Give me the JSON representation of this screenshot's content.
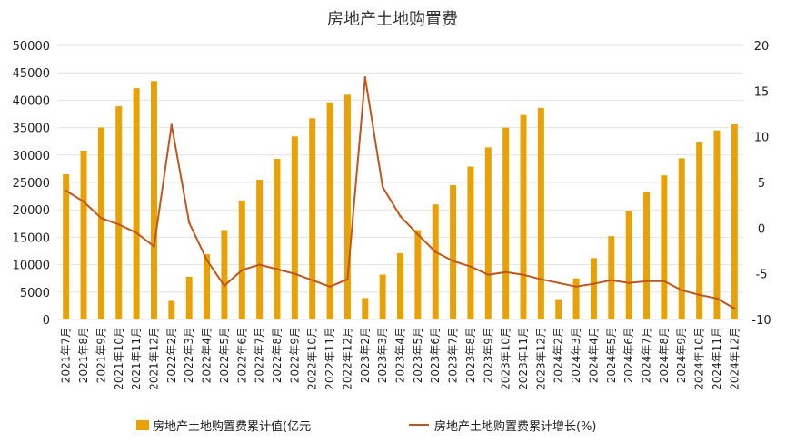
{
  "chart_data": {
    "type": "bar+line",
    "title": "房地产土地购置费",
    "categories": [
      "2021年7月",
      "2021年8月",
      "2021年9月",
      "2021年10月",
      "2021年11月",
      "2021年12月",
      "2022年2月",
      "2022年3月",
      "2022年4月",
      "2022年5月",
      "2022年6月",
      "2022年7月",
      "2022年8月",
      "2022年9月",
      "2022年10月",
      "2022年11月",
      "2022年12月",
      "2023年2月",
      "2023年3月",
      "2023年4月",
      "2023年5月",
      "2023年6月",
      "2023年7月",
      "2023年8月",
      "2023年9月",
      "2023年10月",
      "2023年11月",
      "2023年12月",
      "2024年2月",
      "2024年3月",
      "2024年4月",
      "2024年5月",
      "2024年6月",
      "2024年7月",
      "2024年8月",
      "2024年9月",
      "2024年10月",
      "2024年11月",
      "2024年12月"
    ],
    "series": [
      {
        "name": "房地产土地购置费累计值(亿元",
        "type": "bar",
        "axis": "left",
        "color": "#E8A208",
        "values": [
          26500,
          30800,
          35000,
          38900,
          42200,
          43500,
          3400,
          7800,
          11900,
          16300,
          21700,
          25500,
          29300,
          33400,
          36700,
          39600,
          41000,
          3900,
          8200,
          12100,
          16300,
          21000,
          24500,
          27900,
          31400,
          35000,
          37300,
          38600,
          3700,
          7500,
          11200,
          15200,
          19800,
          23200,
          26300,
          29400,
          32300,
          34500,
          35600
        ]
      },
      {
        "name": "房地产土地购置费累计增长(%)",
        "type": "line",
        "axis": "right",
        "color": "#C0561C",
        "values": [
          4.1,
          2.9,
          1.1,
          0.4,
          -0.5,
          -2.0,
          11.3,
          0.6,
          -3.5,
          -6.3,
          -4.6,
          -4.0,
          -4.5,
          -5.0,
          -5.7,
          -6.4,
          -5.6,
          16.5,
          4.5,
          1.3,
          -0.7,
          -2.6,
          -3.6,
          -4.2,
          -5.1,
          -4.8,
          -5.1,
          -5.6,
          -6.0,
          -6.4,
          -6.1,
          -5.7,
          -6.0,
          -5.8,
          -5.8,
          -6.8,
          -7.3,
          -7.7,
          -8.8
        ]
      }
    ],
    "y_left": {
      "min": 0,
      "max": 50000,
      "step": 5000
    },
    "y_right": {
      "min": -10,
      "max": 20,
      "step": 5
    },
    "grid": true,
    "legend_position": "bottom"
  }
}
